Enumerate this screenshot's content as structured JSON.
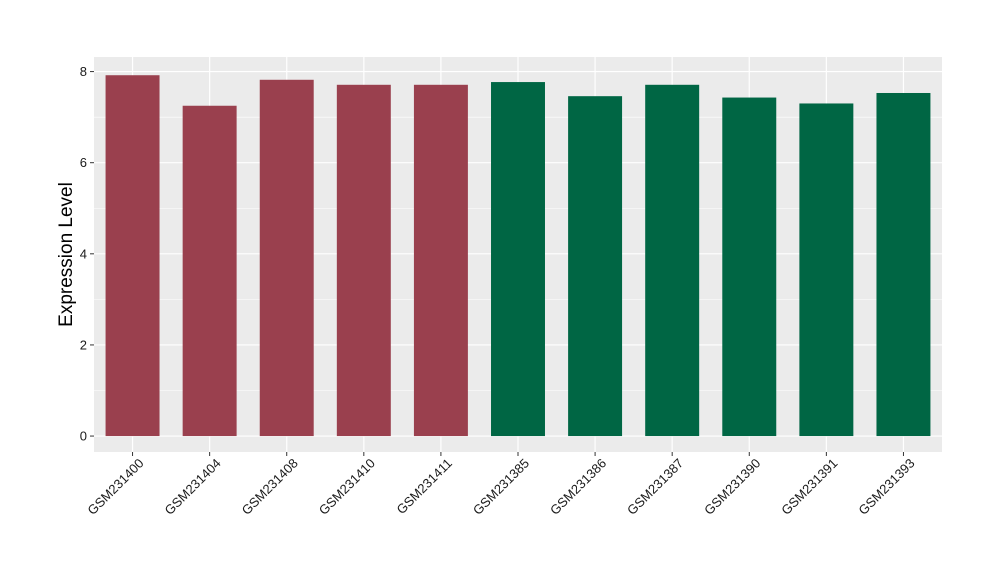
{
  "chart_data": {
    "type": "bar",
    "title": "",
    "xlabel": "",
    "ylabel": "Expression Level",
    "categories": [
      "GSM231400",
      "GSM231404",
      "GSM231408",
      "GSM231410",
      "GSM231411",
      "GSM231385",
      "GSM231386",
      "GSM231387",
      "GSM231390",
      "GSM231391",
      "GSM231393"
    ],
    "values": [
      7.92,
      7.25,
      7.82,
      7.71,
      7.71,
      7.77,
      7.46,
      7.71,
      7.43,
      7.3,
      7.53
    ],
    "bar_colors": [
      "#9A404E",
      "#9A404E",
      "#9A404E",
      "#9A404E",
      "#9A404E",
      "#006644",
      "#006644",
      "#006644",
      "#006644",
      "#006644",
      "#006644"
    ],
    "ylim": [
      -0.35,
      8.32
    ],
    "yticks": [
      0,
      2,
      4,
      6,
      8
    ],
    "grid": true,
    "legend": "none",
    "panel_background": "#EBEBEB",
    "gridline_color": "#FFFFFF"
  }
}
